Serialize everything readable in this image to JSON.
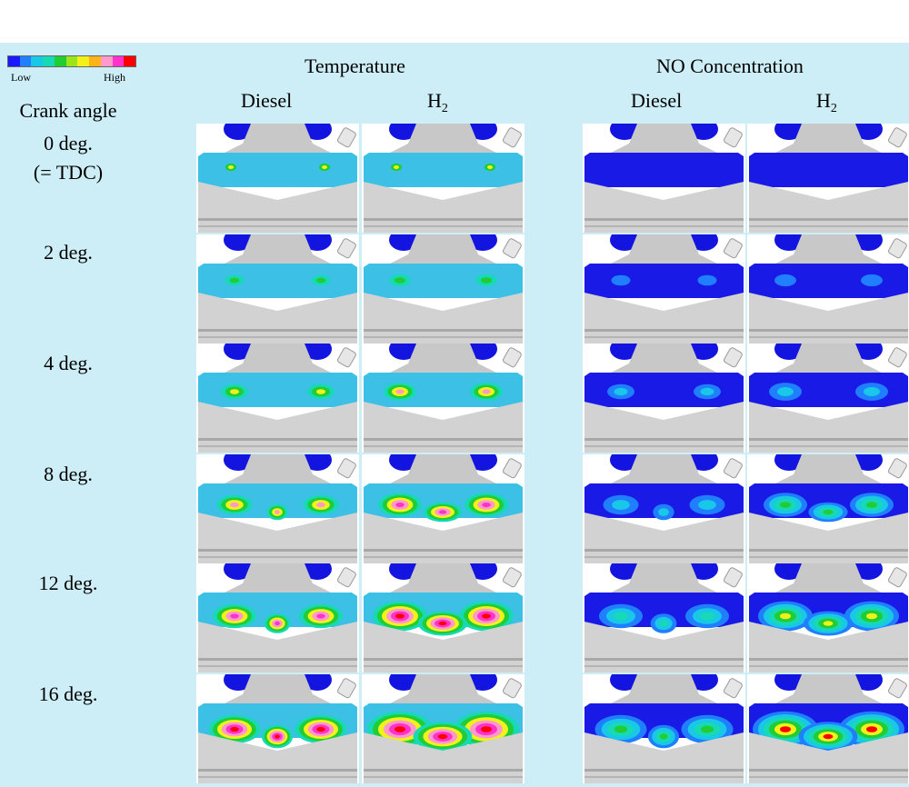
{
  "legend": {
    "low_label": "Low",
    "high_label": "High",
    "colors": [
      "#1a1aff",
      "#1f7fff",
      "#19c8e6",
      "#17d9b6",
      "#22cc33",
      "#9be61a",
      "#f2f21a",
      "#ffb31a",
      "#ff99cc",
      "#ff33cc",
      "#ff0000"
    ]
  },
  "groups": [
    {
      "title": "Temperature",
      "columns": [
        {
          "label": "Diesel",
          "sub": ""
        },
        {
          "label": "H",
          "sub": "2"
        }
      ]
    },
    {
      "title": "NO Concentration",
      "columns": [
        {
          "label": "Diesel",
          "sub": ""
        },
        {
          "label": "H",
          "sub": "2"
        }
      ]
    }
  ],
  "row_header": "Crank angle",
  "rows": [
    {
      "line1": "0 deg.",
      "line2": "(= TDC)"
    },
    {
      "line1": "2 deg.",
      "line2": ""
    },
    {
      "line1": "4 deg.",
      "line2": ""
    },
    {
      "line1": "8 deg.",
      "line2": ""
    },
    {
      "line1": "12 deg.",
      "line2": ""
    },
    {
      "line1": "16 deg.",
      "line2": ""
    }
  ],
  "colors": {
    "panel_bg": "#cdeef7",
    "temperature_bg": "#3cc0e6",
    "no_bg": "#1a1ae6",
    "valve": "#1414e0",
    "metal": "#c8c8c8"
  }
}
